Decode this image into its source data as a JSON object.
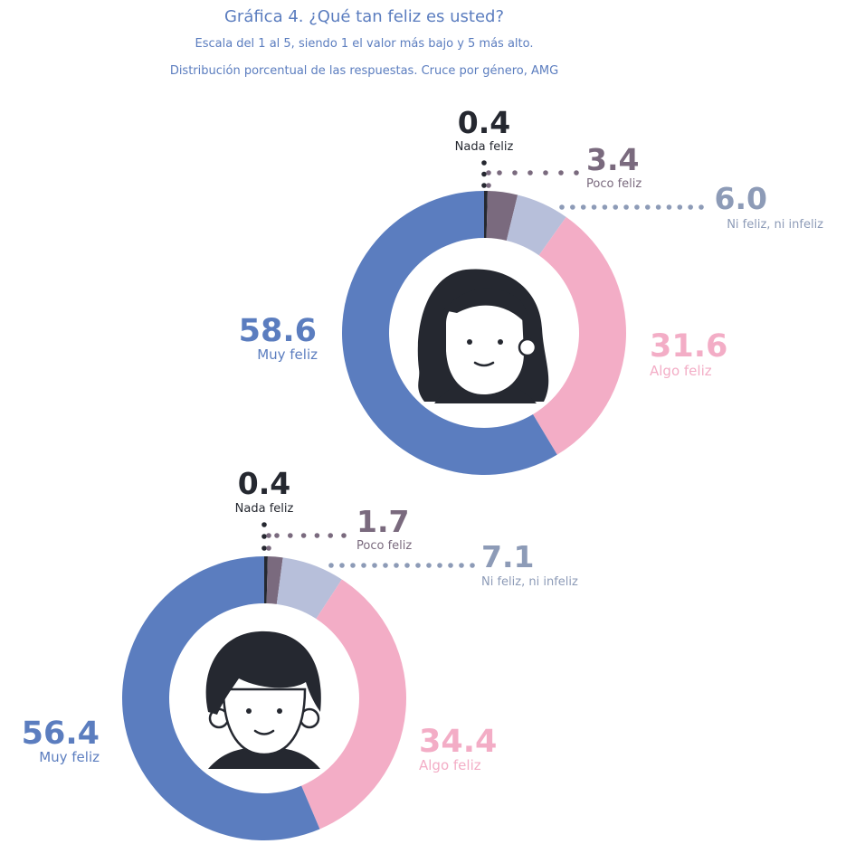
{
  "header": {
    "title": "Gráfica 4. ¿Qué tan feliz es usted?",
    "subtitle": "Escala del 1 al 5, siendo 1 el valor más bajo y 5 más alto.",
    "subtitle2": "Distribución porcentual de las respuestas. Cruce por género, AMG"
  },
  "colors": {
    "nada": "#252830",
    "poco": "#7a6a7e",
    "ni": "#b7bfda",
    "ni_text": "#8d9bb7",
    "algo": "#f3adc6",
    "muy": "#5b7dbf",
    "face": "#252830"
  },
  "chart_data": [
    {
      "type": "pie",
      "icon": "woman-face-icon",
      "categories": [
        "Nada feliz",
        "Poco feliz",
        "Ni feliz, ni infeliz",
        "Algo feliz",
        "Muy feliz"
      ],
      "values": [
        0.4,
        3.4,
        6.0,
        31.6,
        58.6
      ],
      "value_labels": [
        "0.4",
        "3.4",
        "6.0",
        "31.6",
        "58.6"
      ]
    },
    {
      "type": "pie",
      "icon": "man-face-icon",
      "categories": [
        "Nada feliz",
        "Poco feliz",
        "Ni feliz, ni infeliz",
        "Algo feliz",
        "Muy feliz"
      ],
      "values": [
        0.4,
        1.7,
        7.1,
        34.4,
        56.4
      ],
      "value_labels": [
        "0.4",
        "1.7",
        "7.1",
        "34.4",
        "56.4"
      ]
    }
  ]
}
